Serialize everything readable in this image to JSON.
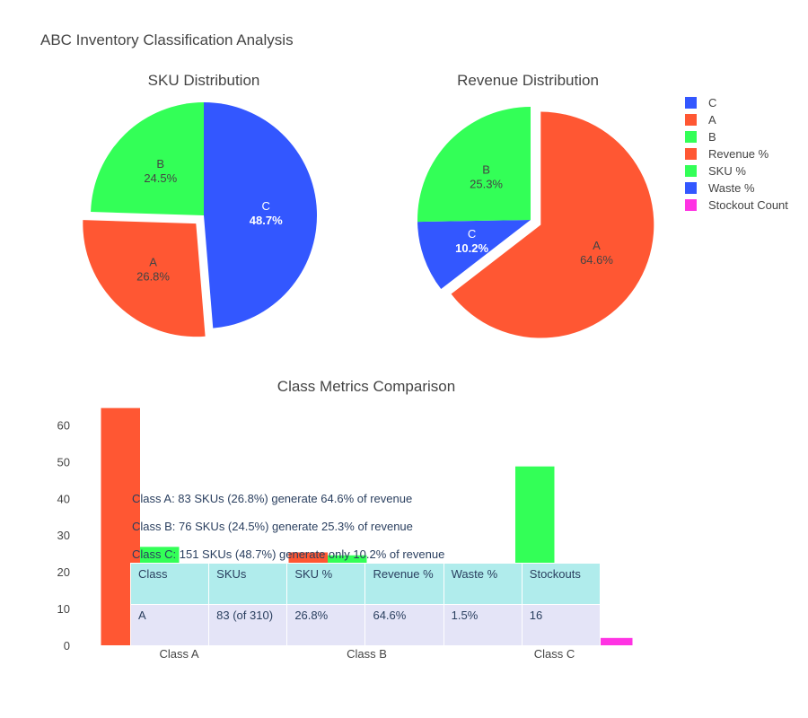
{
  "page_title": "ABC Inventory Classification Analysis",
  "colors": {
    "A": "#FF5733",
    "B": "#33FF57",
    "C": "#3357FF",
    "stockout": "#FF33E3"
  },
  "chart_data": [
    {
      "type": "pie",
      "title": "SKU Distribution",
      "labels": [
        "C",
        "A",
        "B"
      ],
      "values": [
        48.7,
        26.8,
        24.5
      ],
      "text": [
        "48.7%",
        "26.8%",
        "24.5%"
      ],
      "pulled": [
        "A"
      ]
    },
    {
      "type": "pie",
      "title": "Revenue Distribution",
      "labels": [
        "A",
        "C",
        "B"
      ],
      "values": [
        64.6,
        10.2,
        25.3
      ],
      "text": [
        "64.6%",
        "10.2%",
        "25.3%"
      ],
      "pulled": [
        "A"
      ]
    },
    {
      "type": "bar",
      "title": "Class Metrics Comparison",
      "categories": [
        "Class A",
        "Class B",
        "Class C"
      ],
      "ylim": [
        0,
        65
      ],
      "yticks": [
        0,
        10,
        20,
        30,
        40,
        50,
        60
      ],
      "series": [
        {
          "name": "Revenue %",
          "color": "#FF5733",
          "values": [
            64.6,
            25.3,
            10.2
          ]
        },
        {
          "name": "SKU %",
          "color": "#33FF57",
          "values": [
            26.8,
            24.5,
            48.7
          ]
        },
        {
          "name": "Waste %",
          "color": "#3357FF",
          "values": [
            1.5,
            2.0,
            2.5
          ]
        },
        {
          "name": "Stockout Count",
          "color": "#FF33E3",
          "values": [
            16,
            5,
            2
          ]
        }
      ],
      "annotations": [
        "Class A: 83 SKUs (26.8%) generate 64.6% of revenue",
        "Class B: 76 SKUs (24.5%) generate 25.3% of revenue",
        "Class C: 151 SKUs (48.7%) generate only 10.2% of revenue"
      ]
    }
  ],
  "legend": {
    "placement": "top-right",
    "entries": [
      {
        "label": "C",
        "color": "#3357FF"
      },
      {
        "label": "A",
        "color": "#FF5733"
      },
      {
        "label": "B",
        "color": "#33FF57"
      },
      {
        "label": "Revenue %",
        "color": "#FF5733"
      },
      {
        "label": "SKU %",
        "color": "#33FF57"
      },
      {
        "label": "Waste %",
        "color": "#3357FF"
      },
      {
        "label": "Stockout Count",
        "color": "#FF33E3"
      }
    ]
  },
  "table": {
    "headers": [
      "Class",
      "SKUs",
      "SKU %",
      "Revenue %",
      "Waste %",
      "Stockouts"
    ],
    "rows": [
      [
        "A",
        "83 (of 310)",
        "26.8%",
        "64.6%",
        "1.5%",
        "16"
      ]
    ]
  }
}
